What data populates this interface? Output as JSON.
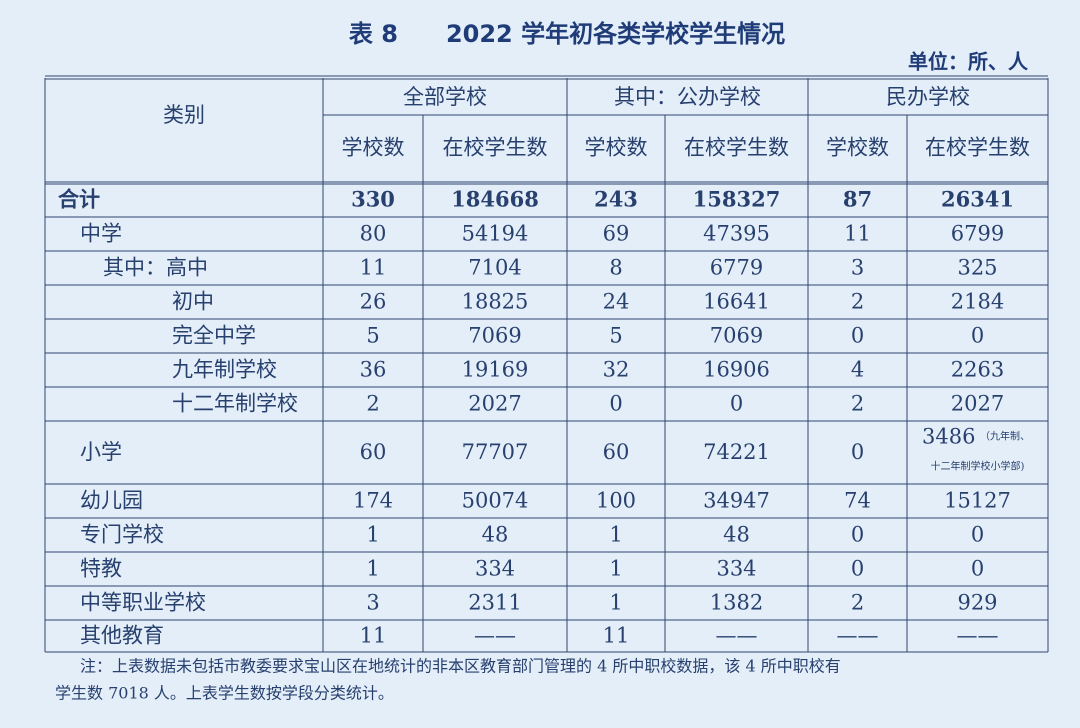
{
  "header": {
    "title": "表 8　　2022 学年初各类学校学生情况",
    "unit": "单位：所、人"
  },
  "table": {
    "corner": "类别",
    "groups": [
      "全部学校",
      "其中：公办学校",
      "民办学校"
    ],
    "columns": [
      "学校数",
      "在校学生数",
      "学校数",
      "在校学生数",
      "学校数",
      "在校学生数"
    ],
    "rows": [
      [
        "合计",
        "330",
        "184668",
        "243",
        "158327",
        "87",
        "26341"
      ],
      [
        "中学",
        "80",
        "54194",
        "69",
        "47395",
        "11",
        "6799"
      ],
      [
        "其中：高中",
        "11",
        "7104",
        "8",
        "6779",
        "3",
        "325"
      ],
      [
        "初中",
        "26",
        "18825",
        "24",
        "16641",
        "2",
        "2184"
      ],
      [
        "完全中学",
        "5",
        "7069",
        "5",
        "7069",
        "0",
        "0"
      ],
      [
        "九年制学校",
        "36",
        "19169",
        "32",
        "16906",
        "4",
        "2263"
      ],
      [
        "十二年制学校",
        "2",
        "2027",
        "0",
        "0",
        "2",
        "2027"
      ],
      [
        "小学",
        "60",
        "77707",
        "60",
        "74221",
        "0",
        "3486"
      ],
      [
        "幼儿园",
        "174",
        "50074",
        "100",
        "34947",
        "74",
        "15127"
      ],
      [
        "专门学校",
        "1",
        "48",
        "1",
        "48",
        "0",
        "0"
      ],
      [
        "特教",
        "1",
        "334",
        "1",
        "334",
        "0",
        "0"
      ],
      [
        "中等职业学校",
        "3",
        "2311",
        "1",
        "1382",
        "2",
        "929"
      ],
      [
        "其他教育",
        "11",
        "——",
        "11",
        "——",
        "——",
        "——"
      ]
    ],
    "cell_note": [
      "（九年制、",
      "十二年制学校小学部)"
    ]
  },
  "footnote": [
    "注：上表数据未包括市教委要求宝山区在地统计的非本区教育部门管理的 4 所中职校数据，该 4 所中职校有",
    "学生数 7018 人。上表学生数按学段分类统计。"
  ]
}
